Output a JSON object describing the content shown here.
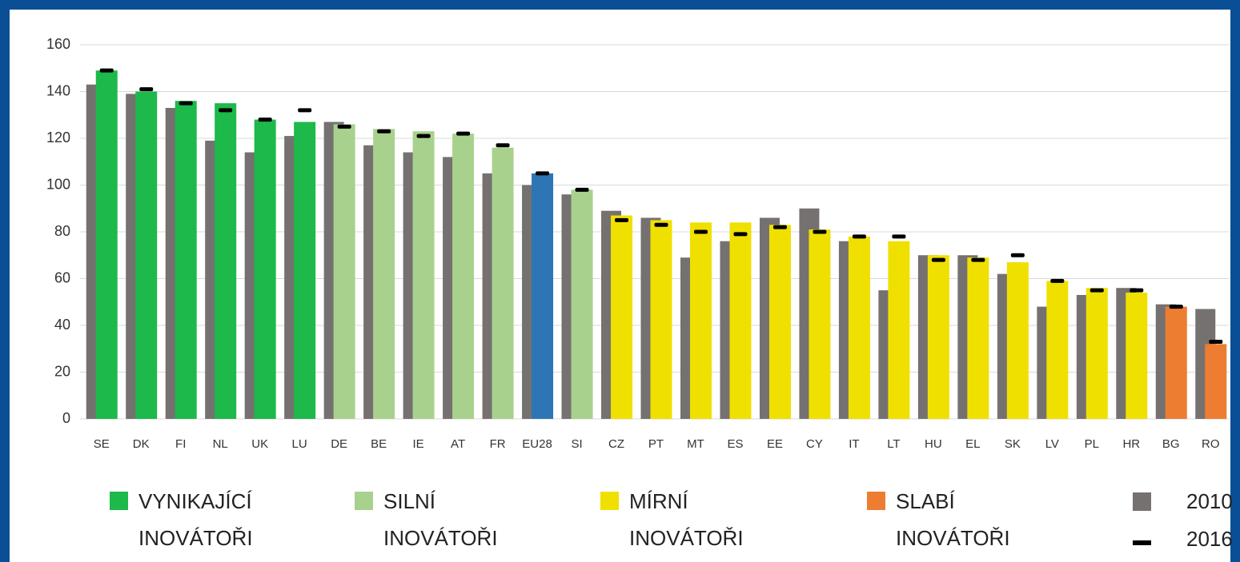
{
  "chart_data": {
    "type": "bar",
    "categories": [
      "SE",
      "DK",
      "FI",
      "NL",
      "UK",
      "LU",
      "DE",
      "BE",
      "IE",
      "AT",
      "FR",
      "EU28",
      "SI",
      "CZ",
      "PT",
      "MT",
      "ES",
      "EE",
      "CY",
      "IT",
      "LT",
      "HU",
      "EL",
      "SK",
      "LV",
      "PL",
      "HR",
      "BG",
      "RO"
    ],
    "bars": {
      "values": [
        149,
        140,
        136,
        135,
        128,
        127,
        126,
        124,
        123,
        122,
        116,
        105,
        98,
        87,
        85,
        84,
        84,
        83,
        81,
        78,
        76,
        70,
        69,
        67,
        59,
        56,
        54,
        48,
        32
      ],
      "colors": [
        "#1db94a",
        "#1db94a",
        "#1db94a",
        "#1db94a",
        "#1db94a",
        "#1db94a",
        "#a9d18e",
        "#a9d18e",
        "#a9d18e",
        "#a9d18e",
        "#a9d18e",
        "#2e75b6",
        "#a9d18e",
        "#f0e000",
        "#f0e000",
        "#f0e000",
        "#f0e000",
        "#f0e000",
        "#f0e000",
        "#f0e000",
        "#f0e000",
        "#f0e000",
        "#f0e000",
        "#f0e000",
        "#f0e000",
        "#f0e000",
        "#f0e000",
        "#ed7d31",
        "#ed7d31"
      ]
    },
    "series": [
      {
        "name": "2010",
        "color": "#767171",
        "values": [
          143,
          139,
          133,
          119,
          114,
          121,
          127,
          117,
          114,
          112,
          105,
          100,
          96,
          89,
          86,
          69,
          76,
          86,
          90,
          76,
          55,
          70,
          70,
          62,
          48,
          53,
          56,
          49,
          47
        ]
      },
      {
        "name": "2016",
        "color": "#000000",
        "marker": "dash",
        "values": [
          149,
          141,
          135,
          132,
          128,
          132,
          125,
          123,
          121,
          122,
          117,
          105,
          98,
          85,
          83,
          80,
          79,
          82,
          80,
          78,
          78,
          68,
          68,
          70,
          59,
          55,
          55,
          48,
          33
        ]
      }
    ],
    "groups": [
      {
        "name": "VYNIKAJÍCÍ INOVÁTOŘI",
        "color": "#1db94a"
      },
      {
        "name": "SILNÍ INOVÁTOŘI",
        "color": "#a9d18e"
      },
      {
        "name": "MÍRNÍ INOVÁTOŘI",
        "color": "#f0e000"
      },
      {
        "name": "SLABÍ INOVÁTOŘI",
        "color": "#ed7d31"
      }
    ],
    "ylim": [
      0,
      160
    ],
    "yticks": [
      0,
      20,
      40,
      60,
      80,
      100,
      120,
      140,
      160
    ],
    "grid": true
  }
}
